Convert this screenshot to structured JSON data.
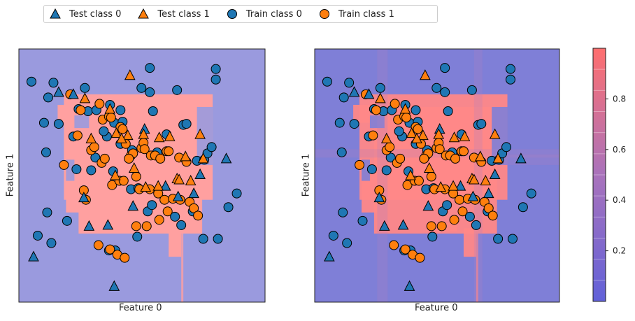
{
  "legend": {
    "items": [
      {
        "label": "Test class 0",
        "marker": "triangle",
        "color": "#1f77b4"
      },
      {
        "label": "Test class 1",
        "marker": "triangle",
        "color": "#ff7f0e"
      },
      {
        "label": "Train class 0",
        "marker": "circle",
        "color": "#1f77b4"
      },
      {
        "label": "Train class 1",
        "marker": "circle",
        "color": "#ff7f0e"
      }
    ]
  },
  "colors": {
    "class0": "#1f77b4",
    "class1": "#ff7f0e",
    "region0": "#9a9ade",
    "region1": "#ffa0a0",
    "region0_dark": "#7f7fd7",
    "region1_dark": "#ff8888"
  },
  "chart_data": [
    {
      "type": "scatter",
      "xlabel": "Feature 0",
      "ylabel": "Feature 1",
      "xlim": [
        -1.15,
        1.2
      ],
      "ylim": [
        -1.15,
        1.25
      ],
      "series": [
        {
          "name": "Train class 0",
          "marker": "circle",
          "x": [
            -1.03,
            -0.87,
            -0.82,
            -0.52,
            -0.28,
            -0.18,
            0.1,
            0.13,
            0.42,
            0.45,
            0.73,
            0.73,
            -0.88,
            -0.69,
            -0.6,
            -0.46,
            -0.42,
            -0.25,
            -0.08,
            -0.01,
            0.08,
            0.12,
            0.34,
            0.4,
            0.51,
            0.61,
            0.75,
            0.85,
            0.93,
            -0.89,
            -0.77,
            -0.63,
            -0.31,
            -0.18,
            -0.07,
            0.03,
            0.17,
            0.26,
            0.55,
            0.62,
            0.65,
            0.69,
            -0.97,
            -0.91,
            -0.84,
            -0.58,
            -0.49,
            -0.41,
            -0.34,
            -0.24,
            -0.16,
            0.02,
            0.1,
            0.36,
            -0.29,
            -0.23,
            -0.02
          ],
          "y": [
            0.94,
            0.79,
            0.93,
            0.88,
            0.72,
            0.67,
            0.84,
            0.66,
            0.53,
            0.54,
            0.96,
            1.06,
            -0.3,
            -0.38,
            0.11,
            0.1,
            0.22,
            0.09,
            -0.08,
            -0.07,
            -0.29,
            -0.23,
            -0.34,
            -0.42,
            -0.29,
            -0.55,
            -0.55,
            -0.25,
            -0.12,
            0.27,
            0.54,
            0.42,
            0.42,
            0.35,
            0.29,
            0.31,
            0.27,
            0.44,
            0.19,
            0.2,
            0.26,
            0.32,
            -0.52,
            0.55,
            -0.59,
            0.68,
            0.66,
            0.67,
            0.47,
            0.55,
            0.56,
            0.88,
            1.07,
            0.86,
            -0.66,
            -0.66,
            -0.53
          ]
        },
        {
          "name": "Train class 1",
          "marker": "circle",
          "x": [
            -0.66,
            -0.59,
            -0.56,
            -0.46,
            -0.43,
            -0.38,
            -0.35,
            -0.29,
            -0.27,
            -0.18,
            -0.16,
            -0.13,
            -0.08,
            -0.06,
            0.02,
            0.04,
            0.05,
            0.11,
            0.15,
            0.2,
            0.26,
            0.28,
            0.38,
            0.45,
            -0.72,
            -0.53,
            -0.51,
            -0.36,
            -0.33,
            -0.26,
            -0.19,
            -0.15,
            -0.1,
            -0.03,
            0.0,
            0.1,
            0.18,
            0.24,
            0.32,
            0.39,
            0.48,
            0.52,
            0.56,
            -0.39,
            -0.28,
            -0.21,
            -0.14,
            -0.03,
            0.07,
            0.19,
            0.27
          ],
          "y": [
            0.82,
            0.43,
            0.67,
            0.29,
            0.32,
            0.73,
            0.58,
            0.61,
            0.6,
            0.51,
            0.49,
            0.35,
            0.24,
            0.26,
            0.31,
            0.36,
            0.3,
            0.24,
            0.24,
            0.21,
            0.28,
            0.28,
            0.22,
            0.18,
            0.15,
            -0.09,
            -0.18,
            0.17,
            0.21,
            -0.04,
            0.0,
            0.0,
            0.21,
            0.04,
            -0.08,
            -0.08,
            -0.12,
            -0.18,
            -0.17,
            -0.18,
            -0.2,
            -0.26,
            -0.33,
            -0.61,
            -0.65,
            -0.7,
            -0.73,
            -0.43,
            -0.43,
            -0.37,
            -0.29
          ]
        },
        {
          "name": "Test class 0",
          "marker": "triangle",
          "x": [
            -0.77,
            -0.53,
            -0.3,
            -0.06,
            0.25,
            0.37,
            0.52,
            0.58,
            0.83,
            -0.63,
            0.05,
            -0.24,
            -1.01,
            -0.48
          ],
          "y": [
            0.84,
            -0.16,
            -0.42,
            -0.24,
            -0.05,
            -0.15,
            -0.12,
            0.06,
            0.21,
            0.82,
            0.49,
            -1.0,
            -0.72,
            -0.43
          ]
        },
        {
          "name": "Test class 1",
          "marker": "triangle",
          "x": [
            -0.09,
            -0.52,
            -0.28,
            -0.22,
            -0.11,
            -0.46,
            -0.17,
            0.04,
            0.19,
            0.29,
            0.58,
            0.44,
            0.61,
            -0.05,
            -0.23,
            0.36,
            0.38,
            0.49,
            0.18,
            0.06
          ],
          "y": [
            1.0,
            0.78,
            0.68,
            0.45,
            0.43,
            0.4,
            0.4,
            0.44,
            0.41,
            0.42,
            0.44,
            0.23,
            0.21,
            0.12,
            0.05,
            0.02,
            0.01,
            0.0,
            -0.05,
            -0.06
          ]
        }
      ]
    },
    {
      "type": "scatter",
      "xlabel": "Feature 0",
      "ylabel": "Feature 1",
      "xlim": [
        -1.15,
        1.2
      ],
      "ylim": [
        -1.15,
        1.25
      ],
      "series": [
        {
          "name": "Train class 0",
          "marker": "circle",
          "x": [
            -1.03,
            -0.87,
            -0.82,
            -0.52,
            -0.28,
            -0.18,
            0.1,
            0.13,
            0.42,
            0.45,
            0.73,
            0.73,
            -0.88,
            -0.69,
            -0.6,
            -0.46,
            -0.42,
            -0.25,
            -0.08,
            -0.01,
            0.08,
            0.12,
            0.34,
            0.4,
            0.51,
            0.61,
            0.75,
            0.85,
            0.93,
            -0.89,
            -0.77,
            -0.63,
            -0.31,
            -0.18,
            -0.07,
            0.03,
            0.17,
            0.26,
            0.55,
            0.62,
            0.65,
            0.69,
            -0.97,
            -0.91,
            -0.84,
            -0.58,
            -0.49,
            -0.41,
            -0.34,
            -0.24,
            -0.16,
            0.02,
            0.1,
            0.36,
            -0.29,
            -0.23,
            -0.02
          ],
          "y": [
            0.94,
            0.79,
            0.93,
            0.88,
            0.72,
            0.67,
            0.84,
            0.66,
            0.53,
            0.54,
            0.96,
            1.06,
            -0.3,
            -0.38,
            0.11,
            0.1,
            0.22,
            0.09,
            -0.08,
            -0.07,
            -0.29,
            -0.23,
            -0.34,
            -0.42,
            -0.29,
            -0.55,
            -0.55,
            -0.25,
            -0.12,
            0.27,
            0.54,
            0.42,
            0.42,
            0.35,
            0.29,
            0.31,
            0.27,
            0.44,
            0.19,
            0.2,
            0.26,
            0.32,
            -0.52,
            0.55,
            -0.59,
            0.68,
            0.66,
            0.67,
            0.47,
            0.55,
            0.56,
            0.88,
            1.07,
            0.86,
            -0.66,
            -0.66,
            -0.53
          ]
        },
        {
          "name": "Train class 1",
          "marker": "circle",
          "x": [
            -0.66,
            -0.59,
            -0.56,
            -0.46,
            -0.43,
            -0.38,
            -0.35,
            -0.29,
            -0.27,
            -0.18,
            -0.16,
            -0.13,
            -0.08,
            -0.06,
            0.02,
            0.04,
            0.05,
            0.11,
            0.15,
            0.2,
            0.26,
            0.28,
            0.38,
            0.45,
            -0.72,
            -0.53,
            -0.51,
            -0.36,
            -0.33,
            -0.26,
            -0.19,
            -0.15,
            -0.1,
            -0.03,
            0.0,
            0.1,
            0.18,
            0.24,
            0.32,
            0.39,
            0.48,
            0.52,
            0.56,
            -0.39,
            -0.28,
            -0.21,
            -0.14,
            -0.03,
            0.07,
            0.19,
            0.27
          ],
          "y": [
            0.82,
            0.43,
            0.67,
            0.29,
            0.32,
            0.73,
            0.58,
            0.61,
            0.6,
            0.51,
            0.49,
            0.35,
            0.24,
            0.26,
            0.31,
            0.36,
            0.3,
            0.24,
            0.24,
            0.21,
            0.28,
            0.28,
            0.22,
            0.18,
            0.15,
            -0.09,
            -0.18,
            0.17,
            0.21,
            -0.04,
            0.0,
            0.0,
            0.21,
            0.04,
            -0.08,
            -0.08,
            -0.12,
            -0.18,
            -0.17,
            -0.18,
            -0.2,
            -0.26,
            -0.33,
            -0.61,
            -0.65,
            -0.7,
            -0.73,
            -0.43,
            -0.43,
            -0.37,
            -0.29
          ]
        },
        {
          "name": "Test class 0",
          "marker": "triangle",
          "x": [
            -0.77,
            -0.53,
            -0.3,
            -0.06,
            0.25,
            0.37,
            0.52,
            0.58,
            0.83,
            -0.63,
            0.05,
            -0.24,
            -1.01,
            -0.48
          ],
          "y": [
            0.84,
            -0.16,
            -0.42,
            -0.24,
            -0.05,
            -0.15,
            -0.12,
            0.06,
            0.21,
            0.82,
            0.49,
            -1.0,
            -0.72,
            -0.43
          ]
        },
        {
          "name": "Test class 1",
          "marker": "triangle",
          "x": [
            -0.09,
            -0.52,
            -0.28,
            -0.22,
            -0.11,
            -0.46,
            -0.17,
            0.04,
            0.19,
            0.29,
            0.58,
            0.44,
            0.61,
            -0.05,
            -0.23,
            0.36,
            0.38,
            0.49,
            0.18,
            0.06
          ],
          "y": [
            1.0,
            0.78,
            0.68,
            0.45,
            0.43,
            0.4,
            0.4,
            0.44,
            0.41,
            0.42,
            0.44,
            0.23,
            0.21,
            0.12,
            0.05,
            0.02,
            0.01,
            0.0,
            -0.05,
            -0.06
          ]
        }
      ]
    },
    {
      "type": "heatmap",
      "colorbar_ticks": [
        "0.2",
        "0.4",
        "0.6",
        "0.8"
      ],
      "colorbar_tick_values": [
        0.2,
        0.4,
        0.6,
        0.8
      ],
      "vmin": 0.0,
      "vmax": 1.0,
      "cmap": [
        "#3b3bd0",
        "#ff4d4d"
      ]
    }
  ]
}
